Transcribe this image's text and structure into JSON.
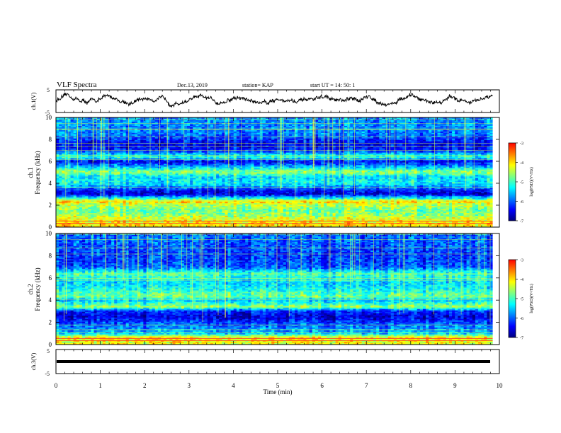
{
  "header": {
    "title": "VLF Spectra",
    "date": "Dec.13, 2019",
    "station": "station= KAP",
    "start": "start  UT =   14: 50: 1"
  },
  "colors": {
    "colormap": [
      "#00007f",
      "#0000ff",
      "#0080ff",
      "#00ffff",
      "#80ff80",
      "#ffff00",
      "#ff8000",
      "#ff0000",
      "#ffffff"
    ],
    "trace": "#000000"
  },
  "chart_data": [
    {
      "type": "line",
      "name": "ch1-waveform",
      "ylabel": "ch.1(V)",
      "ylim": [
        -5,
        5
      ],
      "yticks": [
        "5",
        "-5"
      ],
      "xlim": [
        0,
        10
      ],
      "description_values_y_approx_mean": 0.5
    },
    {
      "type": "heatmap",
      "name": "ch1-spectrogram",
      "ylabel_top": "ch.1",
      "ylabel": "Frequency (kHz)",
      "ylim": [
        0,
        10
      ],
      "yticks": [
        "0",
        "2",
        "4",
        "6",
        "8",
        "10"
      ],
      "xlim": [
        0,
        9.85
      ],
      "colorbar": {
        "label": "log(PSD)(V²/Hz)",
        "range": [
          -7,
          -3
        ],
        "ticks": [
          "-3",
          "-4",
          "-5",
          "-6",
          "-7"
        ]
      },
      "bands": [
        {
          "f": 0.3,
          "level": -4.0
        },
        {
          "f": 0.7,
          "level": -4.2
        },
        {
          "f": 1.1,
          "level": -4.6
        },
        {
          "f": 1.5,
          "level": -4.8
        },
        {
          "f": 2.1,
          "level": -4.4
        },
        {
          "f": 2.3,
          "level": -3.9
        },
        {
          "f": 3.0,
          "level": -6.6
        },
        {
          "f": 3.3,
          "level": -6.4
        },
        {
          "f": 4.0,
          "level": -5.3
        },
        {
          "f": 4.6,
          "level": -5.4
        },
        {
          "f": 5.0,
          "level": -4.6
        },
        {
          "f": 5.5,
          "level": -5.6
        },
        {
          "f": 6.0,
          "level": -6.5
        },
        {
          "f": 6.4,
          "level": -5.0
        },
        {
          "f": 7.0,
          "level": -6.3
        },
        {
          "f": 7.6,
          "level": -6.5
        },
        {
          "f": 8.4,
          "level": -5.9
        },
        {
          "f": 9.5,
          "level": -5.8
        }
      ]
    },
    {
      "type": "heatmap",
      "name": "ch2-spectrogram",
      "ylabel_top": "ch.2",
      "ylabel": "Frequency (kHz)",
      "ylim": [
        0,
        10
      ],
      "yticks": [
        "0",
        "2",
        "4",
        "6",
        "8",
        "10"
      ],
      "xlim": [
        0,
        9.85
      ],
      "colorbar": {
        "label": "log(PSD)(V²/Hz)",
        "range": [
          -7,
          -3
        ],
        "ticks": [
          "-3",
          "-4",
          "-5",
          "-6",
          "-7"
        ]
      },
      "bands": [
        {
          "f": 0.3,
          "level": -4.2
        },
        {
          "f": 0.6,
          "level": -4.0
        },
        {
          "f": 1.0,
          "level": -5.6
        },
        {
          "f": 1.8,
          "level": -6.0
        },
        {
          "f": 2.5,
          "level": -6.6
        },
        {
          "f": 3.0,
          "level": -6.3
        },
        {
          "f": 3.4,
          "level": -4.6
        },
        {
          "f": 4.0,
          "level": -5.6
        },
        {
          "f": 4.3,
          "level": -4.8
        },
        {
          "f": 4.9,
          "level": -5.2
        },
        {
          "f": 5.5,
          "level": -5.5
        },
        {
          "f": 6.4,
          "level": -5.0
        },
        {
          "f": 7.0,
          "level": -6.1
        },
        {
          "f": 8.0,
          "level": -6.2
        },
        {
          "f": 9.5,
          "level": -6.0
        }
      ]
    },
    {
      "type": "line",
      "name": "ch3-waveform",
      "ylabel": "ch.3(V)",
      "ylim": [
        -5,
        5
      ],
      "yticks": [
        "5",
        "-5"
      ],
      "xlim": [
        0,
        9.85
      ],
      "constant_value": 0
    }
  ],
  "xaxis": {
    "label": "Time  (min)",
    "ticks": [
      "0",
      "1",
      "2",
      "3",
      "4",
      "5",
      "6",
      "7",
      "8",
      "9",
      "10"
    ],
    "range": [
      0,
      10
    ]
  }
}
